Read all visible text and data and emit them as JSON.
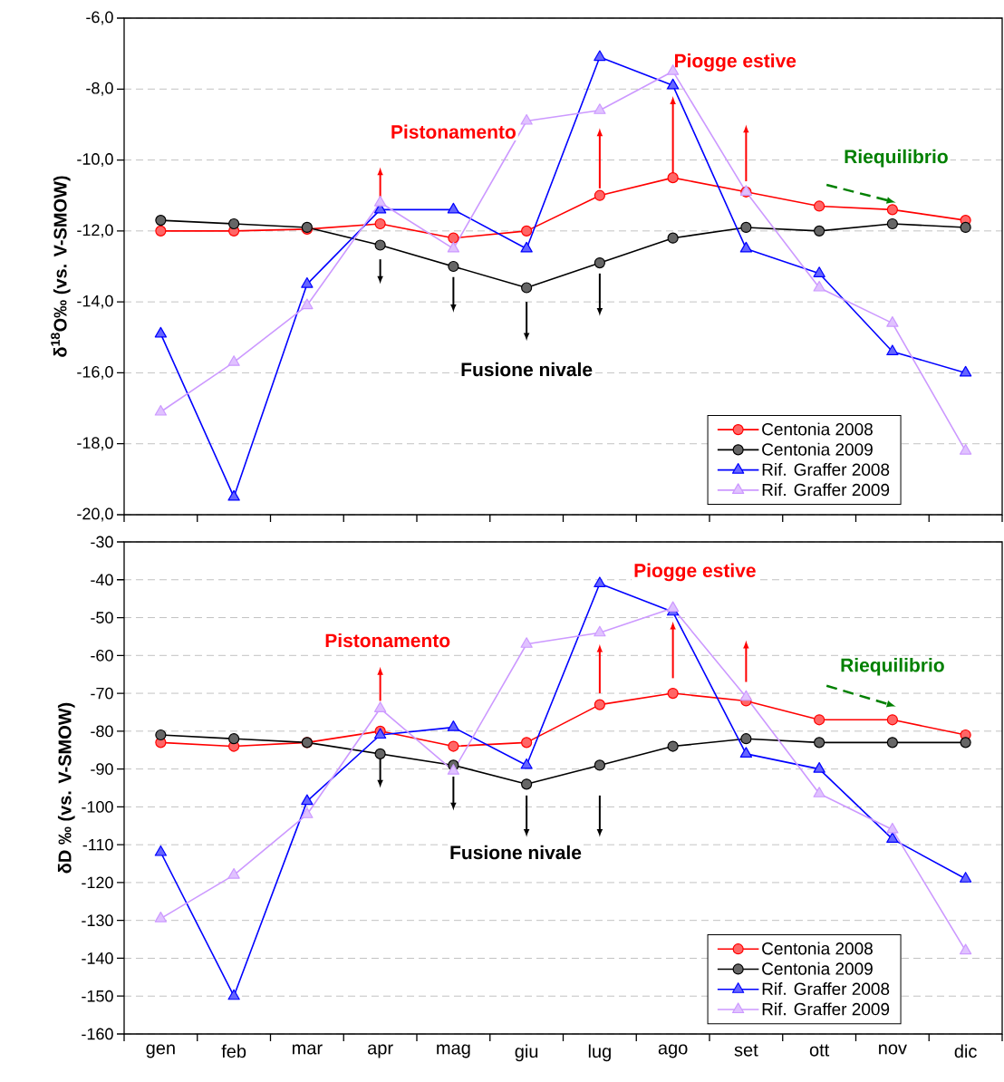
{
  "chart_data": [
    {
      "type": "line",
      "ylabel": "δ$^{18}$O‰ (vs. V-SMOW)",
      "categories": [
        null,
        null,
        null,
        null,
        null,
        null,
        null,
        null,
        null,
        null,
        null,
        null
      ],
      "series": [
        {
          "name": "Centonia 2008",
          "color": "#ff0000",
          "marker": "circle",
          "values": [
            -12.0,
            -12.0,
            -11.95,
            -11.8,
            -12.2,
            -12.0,
            -11.0,
            -10.5,
            -10.9,
            -11.3,
            -11.4,
            -11.7
          ]
        },
        {
          "name": "Centonia 2009",
          "color": "#000000",
          "marker": "circle",
          "values": [
            -11.7,
            -11.8,
            -11.9,
            -12.4,
            -13.0,
            -13.6,
            -12.9,
            -12.2,
            -11.9,
            -12.0,
            -11.8,
            -11.9
          ]
        },
        {
          "name": "Rif. Graffer 2008",
          "color": "#0000ff",
          "marker": "triangle",
          "values": [
            -14.9,
            -19.5,
            -13.5,
            -11.4,
            -11.4,
            -12.5,
            -7.1,
            -7.9,
            -12.5,
            -13.2,
            -15.4,
            -16.0
          ]
        },
        {
          "name": "Rif. Graffer 2009",
          "color": "#cc99ff",
          "marker": "triangle",
          "values": [
            -17.1,
            -15.7,
            -14.1,
            -11.2,
            -12.5,
            -8.9,
            -8.6,
            -7.5,
            -10.9,
            -13.6,
            -14.6,
            -18.2
          ]
        }
      ],
      "ylim": [
        -20,
        -6
      ],
      "yticks": [
        {
          "value": -20,
          "label": "-20,0"
        },
        {
          "value": -18,
          "label": "-18,0"
        },
        {
          "value": -16,
          "label": "-16,0"
        },
        {
          "value": -14,
          "label": "-14,0"
        },
        {
          "value": -12,
          "label": "-12,0"
        },
        {
          "value": -10,
          "label": "-10,0"
        },
        {
          "value": -8,
          "label": "-8,0"
        },
        {
          "value": -6,
          "label": "-6,0"
        }
      ],
      "grid": "y",
      "legend": "bottom right",
      "tick_labels": "y",
      "annotations": [
        "Pistonamento",
        "Piogge estive",
        "Riequilibrio",
        "Fusione nivale"
      ]
    },
    {
      "type": "line",
      "ylabel": "δD ‰ (vs. V-SMOW)",
      "categories": [
        "gen",
        "feb",
        "mar",
        "apr",
        "mag",
        "giu",
        "lug",
        "ago",
        "set",
        "ott",
        "nov",
        "dic"
      ],
      "series": [
        {
          "name": "Centonia 2008",
          "color": "#ff0000",
          "marker": "circle",
          "values": [
            -83,
            -84,
            -83,
            -80,
            -84,
            -83,
            -73,
            -70,
            -72,
            -77,
            -77,
            -81
          ]
        },
        {
          "name": "Centonia 2009",
          "color": "#000000",
          "marker": "circle",
          "values": [
            -81,
            -82,
            -83,
            -86,
            -89,
            -94,
            -89,
            -84,
            -82,
            -83,
            -83,
            -83
          ]
        },
        {
          "name": "Rif. Graffer 2008",
          "color": "#0000ff",
          "marker": "triangle",
          "values": [
            -112,
            -150,
            -98.5,
            -81,
            -79,
            -89,
            -41,
            -48.5,
            -86,
            -90,
            -108.5,
            -119
          ]
        },
        {
          "name": "Rif. Graffer 2009",
          "color": "#cc99ff",
          "marker": "triangle",
          "values": [
            -129.5,
            -118,
            -102,
            -74,
            -90.5,
            -57,
            -54,
            -47.5,
            -71,
            -96.5,
            -106,
            -138
          ]
        }
      ],
      "ylim": [
        -160,
        -30
      ],
      "yticks": [
        -160,
        -150,
        -140,
        -130,
        -120,
        -110,
        -100,
        -90,
        -80,
        -70,
        -60,
        -50,
        -40,
        -30
      ],
      "grid": "y",
      "legend": "bottom right",
      "annotations": [
        "Pistonamento",
        "Piogge estive",
        "Riequilibrio",
        "Fusione nivale"
      ]
    }
  ]
}
